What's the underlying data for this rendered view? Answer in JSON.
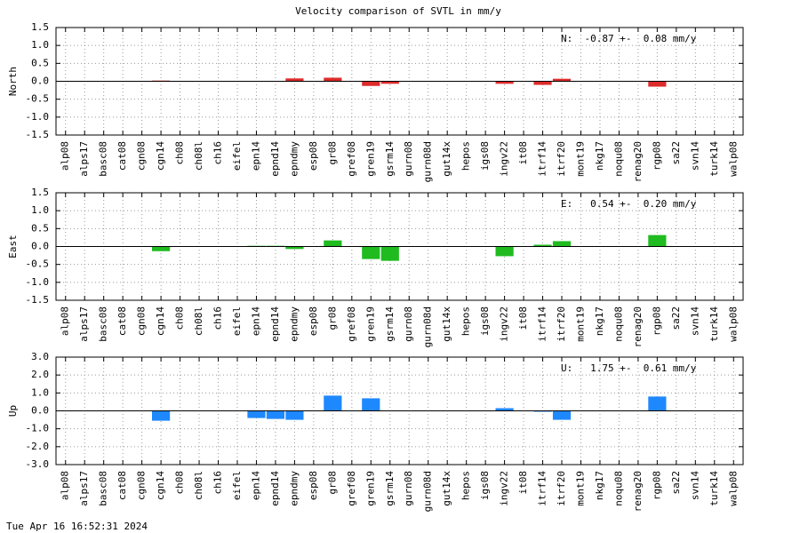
{
  "title": "Velocity comparison of SVTL in mm/y",
  "footer": "Tue Apr 16 16:52:31 2024",
  "chart_data": [
    {
      "type": "bar",
      "y_label": "North",
      "annotation": "N:  -0.87 +-  0.08 mm/y",
      "color": "#dd2b2b",
      "grid": true,
      "categories": [
        "alp08",
        "alps17",
        "basc08",
        "cat08",
        "cgn08",
        "cgn14",
        "ch08",
        "ch08l",
        "ch16",
        "eifel",
        "epn14",
        "epnd14",
        "epndmy",
        "esp08",
        "gr08",
        "gref08",
        "gren19",
        "gsrm14",
        "gurn08",
        "gurn08d",
        "gut14x",
        "hepos",
        "igs08",
        "ingv22",
        "it08",
        "itrf14",
        "itrf20",
        "mont19",
        "nkg17",
        "noqu08",
        "renag20",
        "rgp08",
        "sa22",
        "svn14",
        "turk14",
        "walp08"
      ],
      "values": [
        null,
        null,
        null,
        null,
        null,
        0.02,
        null,
        null,
        null,
        null,
        null,
        null,
        0.08,
        null,
        0.1,
        null,
        -0.13,
        -0.07,
        null,
        null,
        null,
        null,
        null,
        -0.07,
        null,
        -0.1,
        0.07,
        null,
        null,
        null,
        null,
        -0.15,
        null,
        null,
        null,
        null
      ],
      "ylim": [
        -1.5,
        1.5
      ],
      "yticks": [
        1.5,
        {
          "value": 1.0,
          "label": "1.0"
        },
        0.5,
        {
          "value": 0.0,
          "label": "0.0"
        },
        -0.5,
        {
          "value": -1.0,
          "label": "-1.0"
        },
        -1.5
      ]
    },
    {
      "type": "bar",
      "y_label": "East",
      "annotation": "E:   0.54 +-  0.20 mm/y",
      "color": "#1fbb1f",
      "grid": true,
      "categories": [
        "alp08",
        "alps17",
        "basc08",
        "cat08",
        "cgn08",
        "cgn14",
        "ch08",
        "ch08l",
        "ch16",
        "eifel",
        "epn14",
        "epnd14",
        "epndmy",
        "esp08",
        "gr08",
        "gref08",
        "gren19",
        "gsrm14",
        "gurn08",
        "gurn08d",
        "gut14x",
        "hepos",
        "igs08",
        "ingv22",
        "it08",
        "itrf14",
        "itrf20",
        "mont19",
        "nkg17",
        "noqu08",
        "renag20",
        "rgp08",
        "sa22",
        "svn14",
        "turk14",
        "walp08"
      ],
      "values": [
        null,
        null,
        null,
        null,
        null,
        -0.13,
        null,
        null,
        null,
        null,
        0.02,
        0.02,
        -0.07,
        null,
        0.17,
        null,
        -0.35,
        -0.4,
        null,
        null,
        null,
        null,
        null,
        -0.27,
        null,
        0.05,
        0.15,
        null,
        null,
        null,
        null,
        0.32,
        null,
        null,
        null,
        null
      ],
      "ylim": [
        -1.5,
        1.5
      ],
      "yticks": [
        1.5,
        {
          "value": 1.0,
          "label": "1.0"
        },
        0.5,
        {
          "value": 0.0,
          "label": "0.0"
        },
        -0.5,
        {
          "value": -1.0,
          "label": "-1.0"
        },
        -1.5
      ]
    },
    {
      "type": "bar",
      "y_label": "Up",
      "annotation": "U:   1.75 +-  0.61 mm/y",
      "color": "#1e88ff",
      "grid": true,
      "categories": [
        "alp08",
        "alps17",
        "basc08",
        "cat08",
        "cgn08",
        "cgn14",
        "ch08",
        "ch08l",
        "ch16",
        "eifel",
        "epn14",
        "epnd14",
        "epndmy",
        "esp08",
        "gr08",
        "gref08",
        "gren19",
        "gsrm14",
        "gurn08",
        "gurn08d",
        "gut14x",
        "hepos",
        "igs08",
        "ingv22",
        "it08",
        "itrf14",
        "itrf20",
        "mont19",
        "nkg17",
        "noqu08",
        "renag20",
        "rgp08",
        "sa22",
        "svn14",
        "turk14",
        "walp08"
      ],
      "values": [
        null,
        null,
        null,
        null,
        null,
        -0.55,
        null,
        null,
        null,
        null,
        -0.4,
        -0.45,
        -0.5,
        null,
        0.85,
        null,
        0.7,
        null,
        null,
        null,
        null,
        null,
        null,
        0.15,
        null,
        -0.05,
        -0.5,
        null,
        null,
        null,
        null,
        0.8,
        null,
        null,
        null,
        null
      ],
      "ylim": [
        -3.0,
        3.0
      ],
      "yticks": [
        {
          "value": 3.0,
          "label": "3.0"
        },
        {
          "value": 2.0,
          "label": "2.0"
        },
        {
          "value": 1.0,
          "label": "1.0"
        },
        {
          "value": 0.0,
          "label": "0.0"
        },
        {
          "value": -1.0,
          "label": "-1.0"
        },
        {
          "value": -2.0,
          "label": "-2.0"
        },
        {
          "value": -3.0,
          "label": "-3.0"
        }
      ]
    }
  ]
}
